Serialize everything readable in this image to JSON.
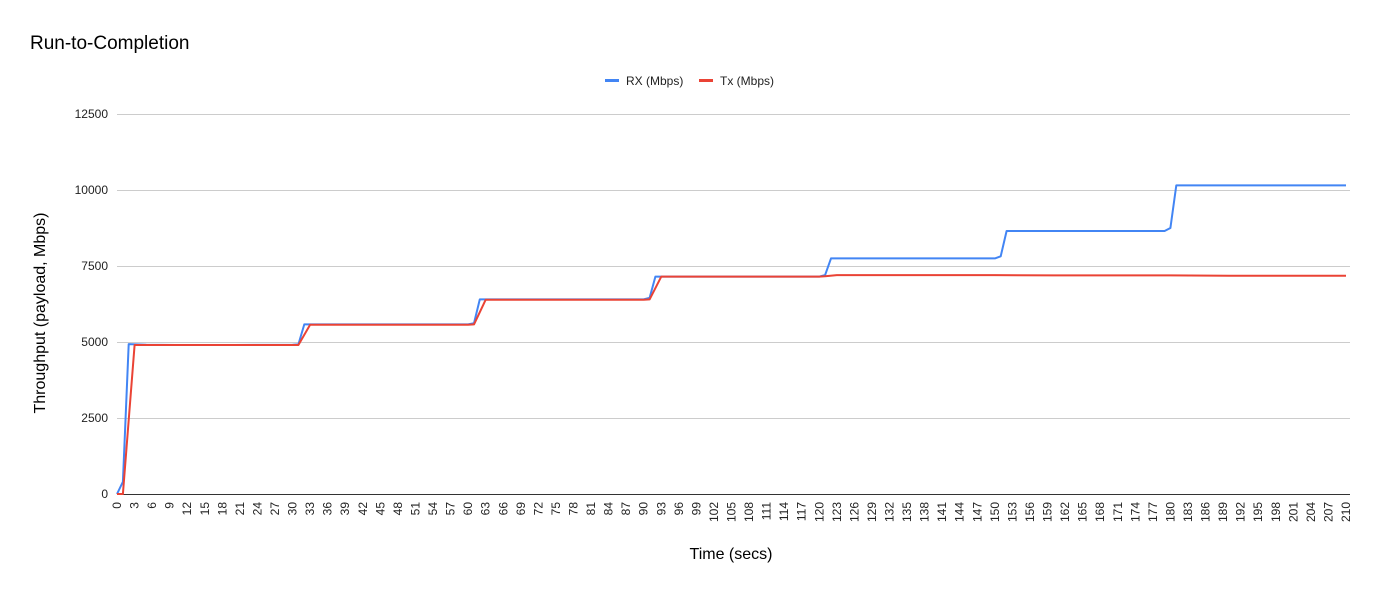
{
  "chart_data": {
    "type": "line",
    "title": "Run-to-Completion",
    "xlabel": "Time (secs)",
    "ylabel": "Throughput (payload, Mbps)",
    "xlim": [
      0,
      210
    ],
    "ylim": [
      0,
      12500
    ],
    "y_ticks": [
      0,
      2500,
      5000,
      7500,
      10000,
      12500
    ],
    "x_ticks": [
      0,
      3,
      6,
      9,
      12,
      15,
      18,
      21,
      24,
      27,
      30,
      33,
      36,
      39,
      42,
      45,
      48,
      51,
      54,
      57,
      60,
      63,
      66,
      69,
      72,
      75,
      78,
      81,
      84,
      87,
      90,
      93,
      96,
      99,
      102,
      105,
      108,
      111,
      114,
      117,
      120,
      123,
      126,
      129,
      132,
      135,
      138,
      141,
      144,
      147,
      150,
      153,
      156,
      159,
      162,
      165,
      168,
      171,
      174,
      177,
      180,
      183,
      186,
      189,
      192,
      195,
      198,
      201,
      204,
      207,
      210
    ],
    "x_tick_labels": [
      "0",
      "3",
      "6",
      "9",
      "12",
      "15",
      "18",
      "21",
      "24",
      "27",
      "30",
      "33",
      "36",
      "39",
      "42",
      "45",
      "48",
      "51",
      "54",
      "57",
      "60",
      "63",
      "66",
      "69",
      "72",
      "75",
      "78",
      "81",
      "84",
      "87",
      "90",
      "93",
      "96",
      "99",
      "102",
      "105",
      "108",
      "111",
      "114",
      "117",
      "120",
      "123",
      "126",
      "129",
      "132",
      "135",
      "138",
      "141",
      "144",
      "147",
      "150",
      "153",
      "156",
      "159",
      "162",
      "165",
      "168",
      "171",
      "174",
      "177",
      "180",
      "183",
      "186",
      "189",
      "192",
      "195",
      "198",
      "201",
      "204",
      "207",
      "210"
    ],
    "y_tick_labels": [
      "0",
      "2500",
      "5000",
      "7500",
      "10000",
      "12500"
    ],
    "grid": true,
    "legend_position": "top",
    "series": [
      {
        "name": "RX (Mbps)",
        "color": "#4285f4",
        "points": [
          [
            0,
            0
          ],
          [
            1,
            400
          ],
          [
            2,
            4930
          ],
          [
            5,
            4910
          ],
          [
            10,
            4900
          ],
          [
            20,
            4900
          ],
          [
            30,
            4910
          ],
          [
            31,
            4920
          ],
          [
            32,
            5580
          ],
          [
            40,
            5580
          ],
          [
            50,
            5580
          ],
          [
            60,
            5580
          ],
          [
            61,
            5620
          ],
          [
            62,
            6400
          ],
          [
            70,
            6400
          ],
          [
            80,
            6400
          ],
          [
            90,
            6400
          ],
          [
            91,
            6450
          ],
          [
            92,
            7150
          ],
          [
            100,
            7150
          ],
          [
            110,
            7150
          ],
          [
            120,
            7150
          ],
          [
            121,
            7200
          ],
          [
            122,
            7750
          ],
          [
            130,
            7750
          ],
          [
            140,
            7750
          ],
          [
            150,
            7750
          ],
          [
            151,
            7820
          ],
          [
            152,
            8650
          ],
          [
            160,
            8650
          ],
          [
            170,
            8650
          ],
          [
            179,
            8650
          ],
          [
            180,
            8750
          ],
          [
            181,
            10150
          ],
          [
            190,
            10150
          ],
          [
            200,
            10150
          ],
          [
            210,
            10150
          ]
        ]
      },
      {
        "name": "Tx (Mbps)",
        "color": "#ea4335",
        "points": [
          [
            0,
            0
          ],
          [
            1,
            0
          ],
          [
            3,
            4900
          ],
          [
            10,
            4900
          ],
          [
            20,
            4900
          ],
          [
            30,
            4900
          ],
          [
            31,
            4900
          ],
          [
            33,
            5570
          ],
          [
            40,
            5570
          ],
          [
            50,
            5570
          ],
          [
            60,
            5570
          ],
          [
            61,
            5580
          ],
          [
            63,
            6390
          ],
          [
            70,
            6390
          ],
          [
            80,
            6390
          ],
          [
            90,
            6390
          ],
          [
            91,
            6400
          ],
          [
            93,
            7150
          ],
          [
            100,
            7150
          ],
          [
            110,
            7150
          ],
          [
            120,
            7150
          ],
          [
            121,
            7160
          ],
          [
            123,
            7200
          ],
          [
            130,
            7200
          ],
          [
            140,
            7200
          ],
          [
            150,
            7200
          ],
          [
            160,
            7190
          ],
          [
            170,
            7190
          ],
          [
            180,
            7190
          ],
          [
            190,
            7180
          ],
          [
            200,
            7180
          ],
          [
            210,
            7180
          ]
        ]
      }
    ]
  }
}
